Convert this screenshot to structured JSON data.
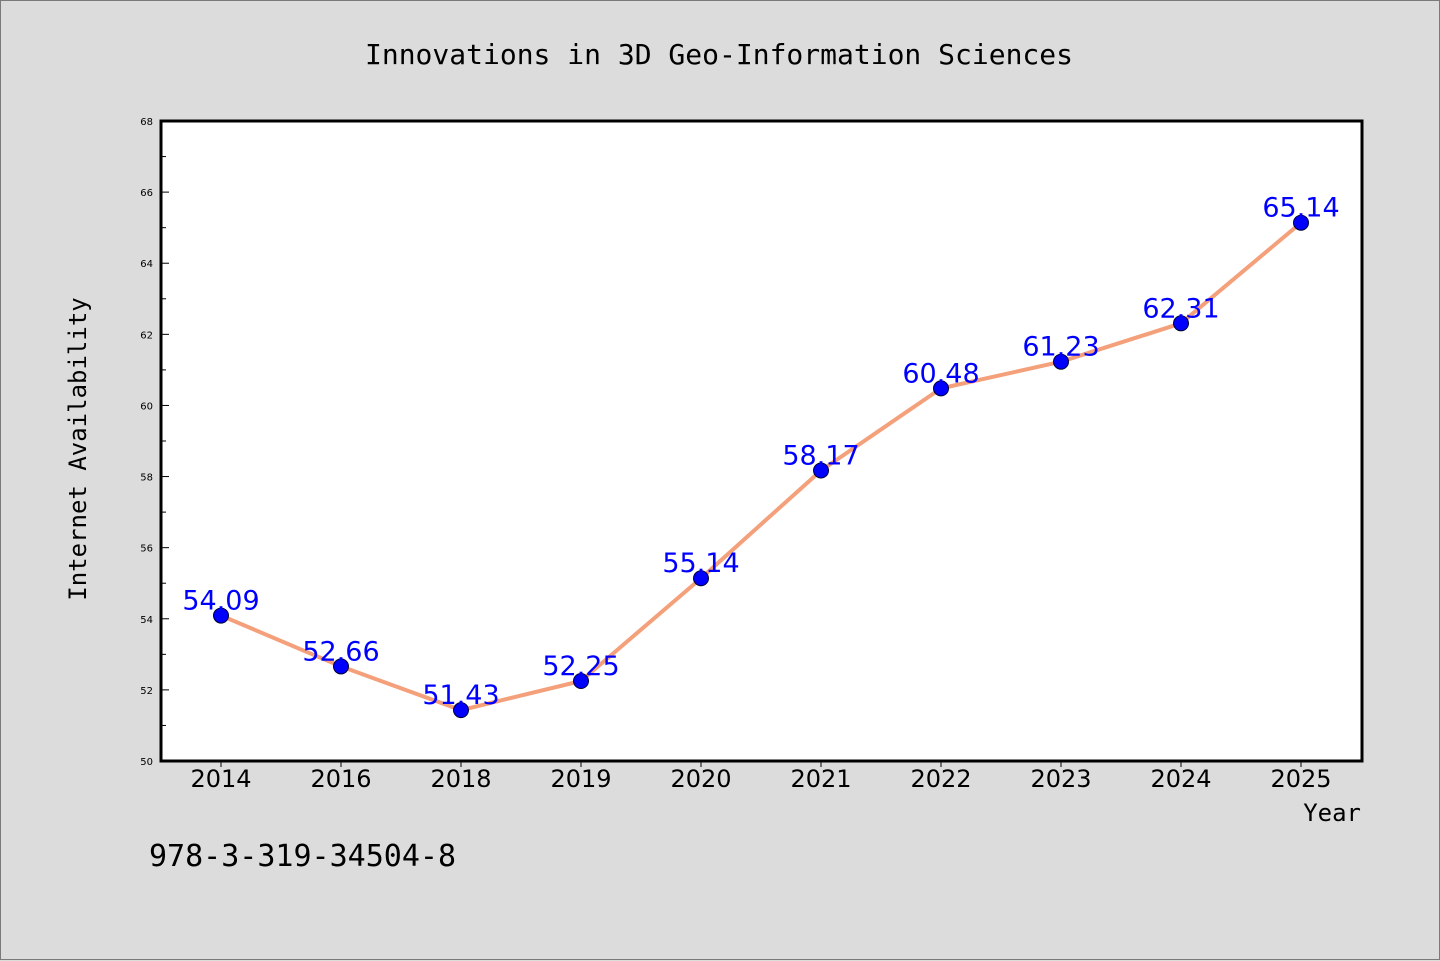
{
  "chart_data": {
    "type": "line",
    "title": "Innovations in 3D Geo-Information Sciences",
    "xlabel": "Year",
    "ylabel": "Internet Availability",
    "categories": [
      "2014",
      "2016",
      "2018",
      "2019",
      "2020",
      "2021",
      "2022",
      "2023",
      "2024",
      "2025"
    ],
    "series": [
      {
        "values": [
          54.09,
          52.66,
          51.43,
          52.25,
          55.14,
          58.17,
          60.48,
          61.23,
          62.31,
          65.14
        ],
        "labels": [
          "54.09",
          "52.66",
          "51.43",
          "52.25",
          "55.14",
          "58.17",
          "60.48",
          "61.23",
          "62.31",
          "65.14"
        ],
        "line_color": "#f4a07a",
        "marker_color": "#0000ff",
        "label_color": "#0000ff"
      }
    ],
    "ylim": [
      50,
      68
    ],
    "yticks": [
      "50",
      "52",
      "54",
      "56",
      "58",
      "60",
      "62",
      "64",
      "66",
      "68"
    ],
    "grid": false,
    "legend": "none"
  },
  "footer": {
    "isbn": "978-3-319-34504-8"
  }
}
